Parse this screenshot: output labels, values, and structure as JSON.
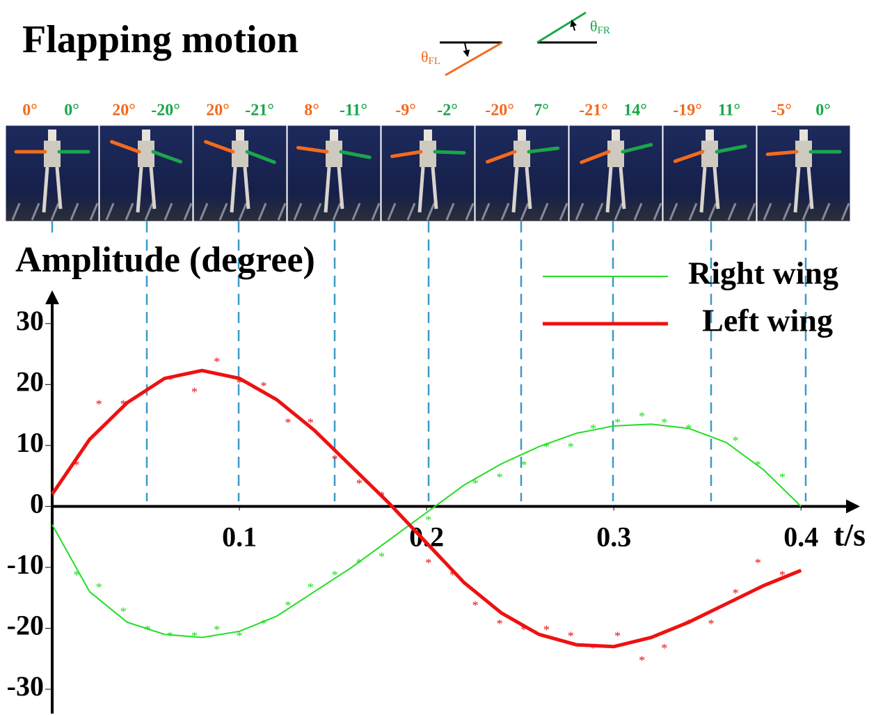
{
  "chart_data": {
    "type": "line",
    "title": "Flapping motion",
    "angle_symbols": [
      {
        "symbol": "θ",
        "sub": "FL"
      },
      {
        "symbol": "θ",
        "sub": "FR"
      }
    ],
    "frames": [
      {
        "left": "0°",
        "right": "0°"
      },
      {
        "left": "20°",
        "right": "-20°"
      },
      {
        "left": "20°",
        "right": "-21°"
      },
      {
        "left": "8°",
        "right": "-11°"
      },
      {
        "left": "-9°",
        "right": "-2°"
      },
      {
        "left": "-20°",
        "right": "7°"
      },
      {
        "left": "-21°",
        "right": "14°"
      },
      {
        "left": "-19°",
        "right": "11°"
      },
      {
        "left": "-5°",
        "right": "0°"
      }
    ],
    "y_label": "Amplitude (degree)",
    "x_label": "t/s",
    "xlim": [
      0,
      0.43
    ],
    "xticks": [
      0.1,
      0.2,
      0.3,
      0.4
    ],
    "ylim": [
      -34,
      35
    ],
    "yticks": [
      -30,
      -20,
      -10,
      0,
      10,
      20,
      30
    ],
    "series": [
      {
        "name": "Right wing",
        "color": "#22dd22",
        "width": 2,
        "x": [
          0,
          0.02,
          0.04,
          0.06,
          0.08,
          0.1,
          0.12,
          0.14,
          0.16,
          0.18,
          0.2,
          0.22,
          0.24,
          0.26,
          0.28,
          0.3,
          0.32,
          0.34,
          0.36,
          0.38,
          0.4
        ],
        "values": [
          -3,
          -14,
          -19,
          -21,
          -21.5,
          -20.5,
          -18,
          -14,
          -10,
          -5.5,
          -1,
          3.5,
          7,
          9.8,
          12,
          13.2,
          13.5,
          12.8,
          10.5,
          6,
          0
        ],
        "scatter": {
          "x": [
            0.013,
            0.025,
            0.038,
            0.051,
            0.063,
            0.076,
            0.088,
            0.1,
            0.113,
            0.126,
            0.138,
            0.151,
            0.164,
            0.176,
            0.201,
            0.226,
            0.239,
            0.252,
            0.264,
            0.277,
            0.289,
            0.302,
            0.315,
            0.327,
            0.34,
            0.365,
            0.377,
            0.39
          ],
          "values": [
            -11,
            -13,
            -17,
            -20,
            -21,
            -21,
            -20,
            -21,
            -19,
            -16,
            -13,
            -11,
            -9,
            -8,
            -2,
            4,
            5,
            7,
            10,
            10,
            13,
            14,
            15,
            14,
            13,
            11,
            7,
            5
          ]
        }
      },
      {
        "name": "Left wing",
        "color": "#ee1111",
        "width": 5,
        "x": [
          0,
          0.02,
          0.04,
          0.06,
          0.08,
          0.1,
          0.12,
          0.14,
          0.16,
          0.18,
          0.2,
          0.22,
          0.24,
          0.26,
          0.28,
          0.3,
          0.32,
          0.34,
          0.36,
          0.38,
          0.4
        ],
        "values": [
          2,
          11,
          17,
          21,
          22.3,
          21,
          17.5,
          12.5,
          6.5,
          0.5,
          -6,
          -12.5,
          -17.5,
          -21,
          -22.7,
          -23,
          -21.5,
          -19,
          -16,
          -13,
          -10.5
        ],
        "scatter": {
          "x": [
            0.013,
            0.025,
            0.038,
            0.063,
            0.076,
            0.088,
            0.1,
            0.113,
            0.126,
            0.138,
            0.151,
            0.164,
            0.176,
            0.201,
            0.214,
            0.226,
            0.239,
            0.252,
            0.264,
            0.277,
            0.289,
            0.302,
            0.315,
            0.327,
            0.34,
            0.352,
            0.365,
            0.377,
            0.39
          ],
          "values": [
            7,
            17,
            17,
            21,
            19,
            24,
            20.5,
            20,
            14,
            14,
            8,
            4,
            2,
            -9,
            -11,
            -16,
            -19,
            -20,
            -20,
            -21,
            -23,
            -21,
            -25,
            -23,
            -19,
            -19,
            -14,
            -9,
            -11
          ]
        }
      }
    ]
  }
}
